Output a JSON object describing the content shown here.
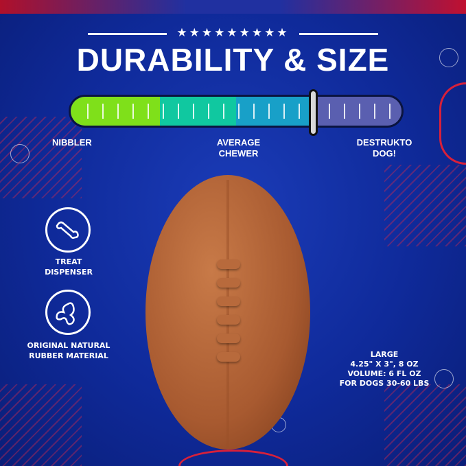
{
  "header": {
    "stars": "★★★★★★★★★",
    "title": "DURABILITY & SIZE"
  },
  "meter": {
    "level": 0.73,
    "segment_colors": [
      "#7fe01a",
      "#10c8a0",
      "#18a0c8",
      "#5a5fb0"
    ],
    "labels": {
      "low": "NIBBLER",
      "mid_line1": "AVERAGE",
      "mid_line2": "CHEWER",
      "high_line1": "DESTRUKTO",
      "high_line2": "DOG!"
    }
  },
  "features": [
    {
      "icon": "bone-icon",
      "line1": "TREAT",
      "line2": "DISPENSER"
    },
    {
      "icon": "rubber-drop-icon",
      "line1": "ORIGINAL NATURAL",
      "line2": "RUBBER MATERIAL"
    }
  ],
  "size": {
    "name": "LARGE",
    "dimensions": "4.25\" X 3\", 8 OZ",
    "volume": "VOLUME: 6 FL OZ",
    "dogs": "FOR DOGS 30-60 LBS"
  },
  "colors": {
    "background": "#1333a8",
    "accent_red": "#d8203a",
    "ball": "#b0663a"
  }
}
